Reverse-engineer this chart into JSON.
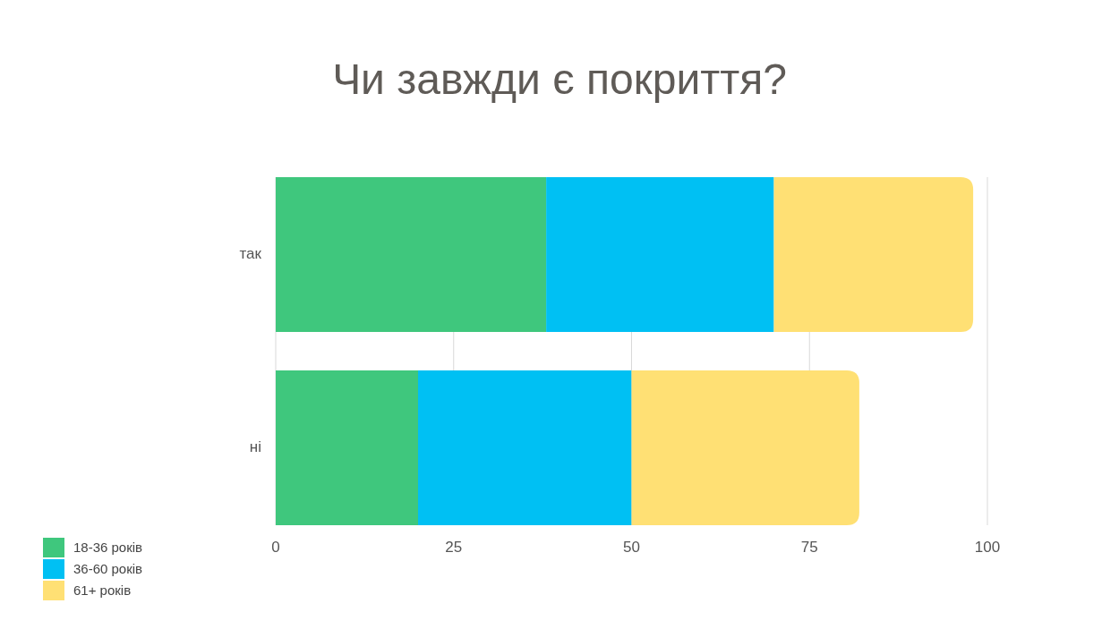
{
  "chart_data": {
    "type": "bar",
    "title": "Чи завжди є покриття?",
    "orientation": "horizontal",
    "stacked": true,
    "categories": [
      "так",
      "ні"
    ],
    "series": [
      {
        "name": "18-36 років",
        "color": "#3fc77d",
        "values": [
          38,
          20
        ]
      },
      {
        "name": "36-60 років",
        "color": "#00c0f3",
        "values": [
          32,
          30
        ]
      },
      {
        "name": "61+ років",
        "color": "#ffe074",
        "values": [
          28,
          32
        ]
      }
    ],
    "xlim": [
      0,
      100
    ],
    "xticks": [
      0,
      25,
      50,
      75,
      100
    ],
    "grid": "x",
    "legend": "bottom left"
  }
}
